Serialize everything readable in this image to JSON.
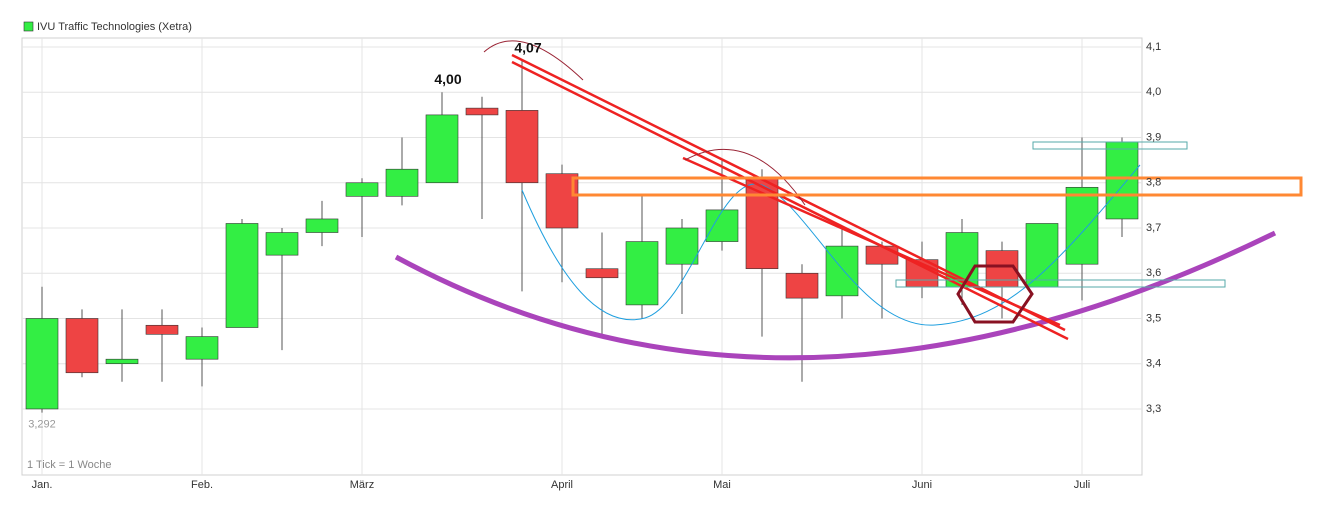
{
  "chart_data": {
    "type": "candlestick",
    "title": "IVU Traffic Technologies (Xetra)",
    "note": "1 Tick = 1 Woche",
    "up_color": "#33ee44",
    "down_color": "#ee4444",
    "categories": [
      "Jan.",
      null,
      null,
      null,
      "Feb.",
      null,
      null,
      null,
      "März",
      null,
      null,
      null,
      null,
      "April",
      null,
      null,
      null,
      "Mai",
      null,
      null,
      null,
      null,
      "Juni",
      null,
      null,
      null,
      "Juli",
      null
    ],
    "open": [
      3.3,
      3.5,
      3.4,
      3.485,
      3.41,
      3.48,
      3.64,
      3.69,
      3.77,
      3.77,
      3.8,
      3.965,
      3.96,
      3.82,
      3.61,
      3.53,
      3.62,
      3.67,
      3.81,
      3.6,
      3.55,
      3.66,
      3.63,
      3.57,
      3.65,
      3.57,
      3.62,
      3.72
    ],
    "high": [
      3.57,
      3.52,
      3.52,
      3.52,
      3.48,
      3.72,
      3.7,
      3.76,
      3.81,
      3.9,
      4.0,
      3.99,
      4.07,
      3.84,
      3.69,
      3.77,
      3.72,
      3.85,
      3.83,
      3.62,
      3.7,
      3.67,
      3.67,
      3.72,
      3.67,
      3.71,
      3.9,
      3.9
    ],
    "low": [
      3.292,
      3.37,
      3.36,
      3.36,
      3.35,
      3.48,
      3.43,
      3.66,
      3.68,
      3.75,
      3.8,
      3.72,
      3.56,
      3.58,
      3.46,
      3.5,
      3.51,
      3.65,
      3.46,
      3.36,
      3.5,
      3.5,
      3.545,
      3.53,
      3.5,
      3.57,
      3.54,
      3.68
    ],
    "close": [
      3.5,
      3.38,
      3.41,
      3.465,
      3.46,
      3.71,
      3.69,
      3.72,
      3.8,
      3.83,
      3.95,
      3.95,
      3.8,
      3.7,
      3.59,
      3.67,
      3.7,
      3.74,
      3.61,
      3.545,
      3.66,
      3.62,
      3.57,
      3.69,
      3.57,
      3.71,
      3.79,
      3.89
    ],
    "high_labels": [
      null,
      null,
      null,
      null,
      null,
      null,
      null,
      null,
      null,
      null,
      "4,00",
      null,
      "4,07",
      null,
      null,
      null,
      null,
      null,
      null,
      null,
      null,
      null,
      null,
      null,
      null,
      null,
      null,
      null
    ],
    "low_labels": [
      "3,292",
      null,
      null,
      null,
      null,
      null,
      null,
      null,
      null,
      null,
      null,
      null,
      null,
      null,
      null,
      null,
      null,
      null,
      null,
      null,
      null,
      null,
      null,
      null,
      null,
      null,
      null,
      null
    ],
    "ylim": [
      3.154,
      4.12
    ],
    "yticks": [
      {
        "value": 3.3,
        "label": "3,3"
      },
      {
        "value": 3.4,
        "label": "3,4"
      },
      {
        "value": 3.5,
        "label": "3,5"
      },
      {
        "value": 3.6,
        "label": "3,6"
      },
      {
        "value": 3.7,
        "label": "3,7"
      },
      {
        "value": 3.8,
        "label": "3,8"
      },
      {
        "value": 3.9,
        "label": "3,9"
      },
      {
        "value": 4.0,
        "label": "4,0"
      },
      {
        "value": 4.1,
        "label": "4,1"
      }
    ],
    "grid": true
  }
}
